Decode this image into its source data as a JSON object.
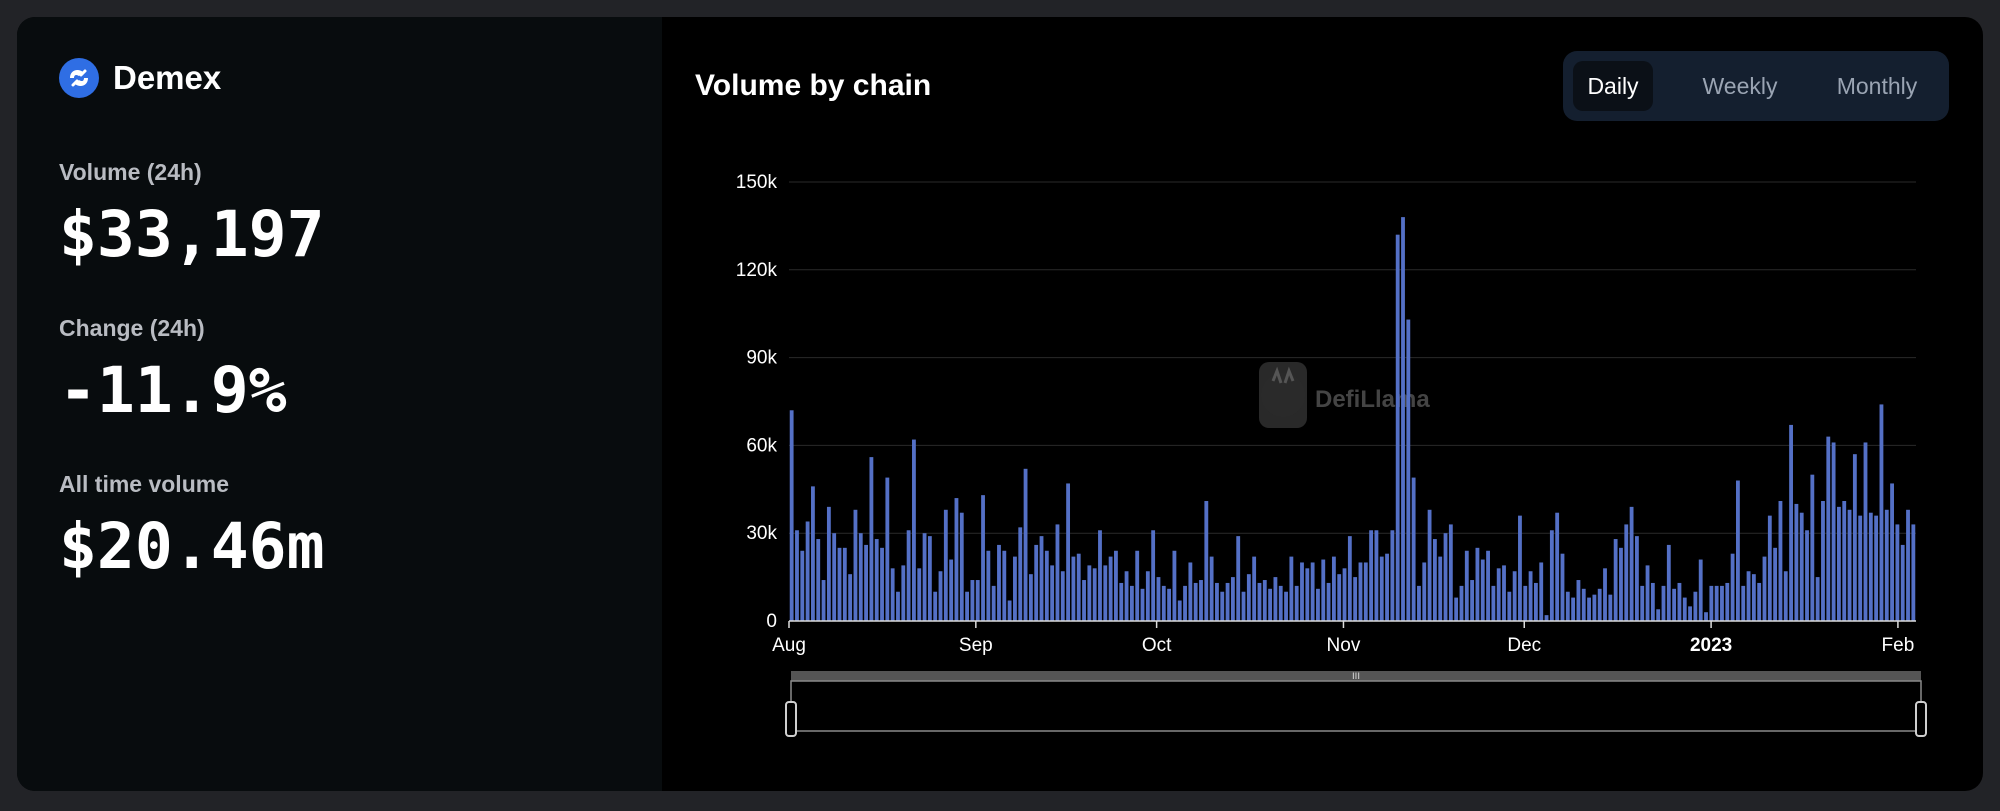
{
  "brand": {
    "name": "Demex",
    "logo_icon": "demex-swirl-icon",
    "logo_color": "#2f6ee4"
  },
  "stats": [
    {
      "label": "Volume (24h)",
      "value": "$33,197"
    },
    {
      "label": "Change (24h)",
      "value": "-11.9%"
    },
    {
      "label": "All time volume",
      "value": "$20.46m"
    }
  ],
  "chart_header": {
    "title": "Volume by chain"
  },
  "period_toggle": {
    "options": [
      "Daily",
      "Weekly",
      "Monthly"
    ],
    "selected": "Daily"
  },
  "watermark": {
    "text": "DefiLlama",
    "icon": "llama-logo-icon"
  },
  "colors": {
    "bar": "#5470c6",
    "grid": "#2a2a2a",
    "axis_text": "#ffffff"
  },
  "chart_data": {
    "type": "bar",
    "title": "Volume by chain",
    "xlabel": "",
    "ylabel": "",
    "ylim": [
      0,
      150000
    ],
    "y_ticks": [
      0,
      30000,
      60000,
      90000,
      120000,
      150000
    ],
    "y_tick_labels": [
      "0",
      "30k",
      "60k",
      "90k",
      "120k",
      "150k"
    ],
    "x_ticks": [
      {
        "date": "2022-08-01",
        "label": "Aug",
        "bold": false
      },
      {
        "date": "2022-09-01",
        "label": "Sep",
        "bold": false
      },
      {
        "date": "2022-10-01",
        "label": "Oct",
        "bold": false
      },
      {
        "date": "2022-11-01",
        "label": "Nov",
        "bold": false
      },
      {
        "date": "2022-12-01",
        "label": "Dec",
        "bold": false
      },
      {
        "date": "2023-01-01",
        "label": "2023",
        "bold": true
      },
      {
        "date": "2023-02-01",
        "label": "Feb",
        "bold": false
      }
    ],
    "grid": true,
    "legend": "none",
    "x_range": [
      "2022-08-01",
      "2023-02-04"
    ],
    "series": [
      {
        "values": [
          72000,
          31000,
          24000,
          34000,
          46000,
          28000,
          14000,
          39000,
          30000,
          25000,
          25000,
          16000,
          38000,
          30000,
          26000,
          56000,
          28000,
          25000,
          49000,
          18000,
          10000,
          19000,
          31000,
          62000,
          18000,
          30000,
          29000,
          10000,
          17000,
          38000,
          21000,
          42000,
          37000,
          10000,
          14000,
          14000,
          43000,
          24000,
          12000,
          26000,
          24000,
          7000,
          22000,
          32000,
          52000,
          16000,
          26000,
          29000,
          24000,
          19000,
          33000,
          17000,
          47000,
          22000,
          23000,
          14000,
          19000,
          18000,
          31000,
          19000,
          22000,
          24000,
          13000,
          17000,
          12000,
          24000,
          11000,
          17000,
          31000,
          15000,
          12000,
          11000,
          24000,
          7000,
          12000,
          20000,
          13000,
          14000,
          41000,
          22000,
          13000,
          10000,
          13000,
          15000,
          29000,
          10000,
          16000,
          22000,
          13000,
          14000,
          11000,
          15000,
          12000,
          10000,
          22000,
          12000,
          20000,
          18000,
          20000,
          11000,
          21000,
          13000,
          22000,
          16000,
          18000,
          29000,
          15000,
          20000,
          20000,
          31000,
          31000,
          22000,
          23000,
          31000,
          132000,
          138000,
          103000,
          49000,
          12000,
          20000,
          38000,
          28000,
          22000,
          30000,
          33000,
          8000,
          12000,
          24000,
          14000,
          25000,
          21000,
          24000,
          12000,
          18000,
          19000,
          10000,
          17000,
          36000,
          12000,
          17000,
          13000,
          20000,
          2000,
          31000,
          37000,
          23000,
          10000,
          8000,
          14000,
          11000,
          8000,
          9000,
          11000,
          18000,
          9000,
          28000,
          25000,
          33000,
          39000,
          29000,
          12000,
          19000,
          13000,
          4000,
          12000,
          26000,
          11000,
          13000,
          8000,
          5000,
          10000,
          21000,
          3000,
          12000,
          12000,
          12000,
          13000,
          23000,
          48000,
          12000,
          17000,
          16000,
          13000,
          22000,
          36000,
          25000,
          41000,
          17000,
          67000,
          40000,
          37000,
          31000,
          50000,
          15000,
          41000,
          63000,
          61000,
          39000,
          41000,
          38000,
          57000,
          36000,
          61000,
          37000,
          36000,
          74000,
          38000,
          47000,
          33000,
          26000,
          38000,
          33000
        ]
      }
    ]
  }
}
